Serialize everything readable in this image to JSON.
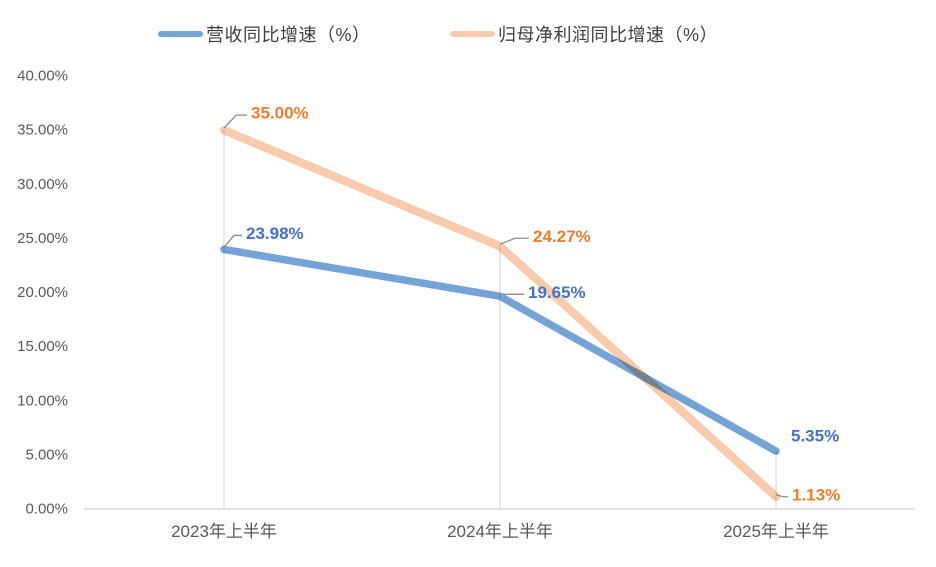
{
  "chart_data": {
    "type": "line",
    "title": "",
    "categories": [
      "2023年上半年",
      "2024年上半年",
      "2025年上半年"
    ],
    "series": [
      {
        "name": "营收同比增速（%）",
        "values": [
          23.98,
          19.65,
          5.35
        ],
        "color": "#74A3D5",
        "label_color": "#4472C4",
        "labels": [
          {
            "text": "23.98%",
            "dx": 22,
            "dy": -16,
            "leader": true
          },
          {
            "text": "19.65%",
            "dx": 28,
            "dy": -4,
            "leader": true
          },
          {
            "text": "5.35%",
            "dx": 15,
            "dy": -15,
            "leader": false
          }
        ]
      },
      {
        "name": "归母净利润同比增速（%）",
        "values": [
          35.0,
          24.27,
          1.13
        ],
        "color": "#F8CBAD",
        "label_color": "#ED7D31",
        "labels": [
          {
            "text": "35.00%",
            "dx": 27,
            "dy": -17,
            "leader": true
          },
          {
            "text": "24.27%",
            "dx": 33,
            "dy": -10,
            "leader": true
          },
          {
            "text": "1.13%",
            "dx": 16,
            "dy": -2,
            "leader": true
          }
        ]
      }
    ],
    "y_ticks": [
      "0.00%",
      "5.00%",
      "10.00%",
      "15.00%",
      "20.00%",
      "25.00%",
      "30.00%",
      "35.00%",
      "40.00%"
    ],
    "y_tick_step": 5,
    "ylim": [
      0,
      40
    ],
    "grid": "vertical drop lines at each category only",
    "legend_position": "top",
    "axis_color": "#D9D9D9",
    "drop_line_color": "#D9D9D9",
    "leader_line_color": "#8C8C8C",
    "tick_label_color": "#595959"
  }
}
